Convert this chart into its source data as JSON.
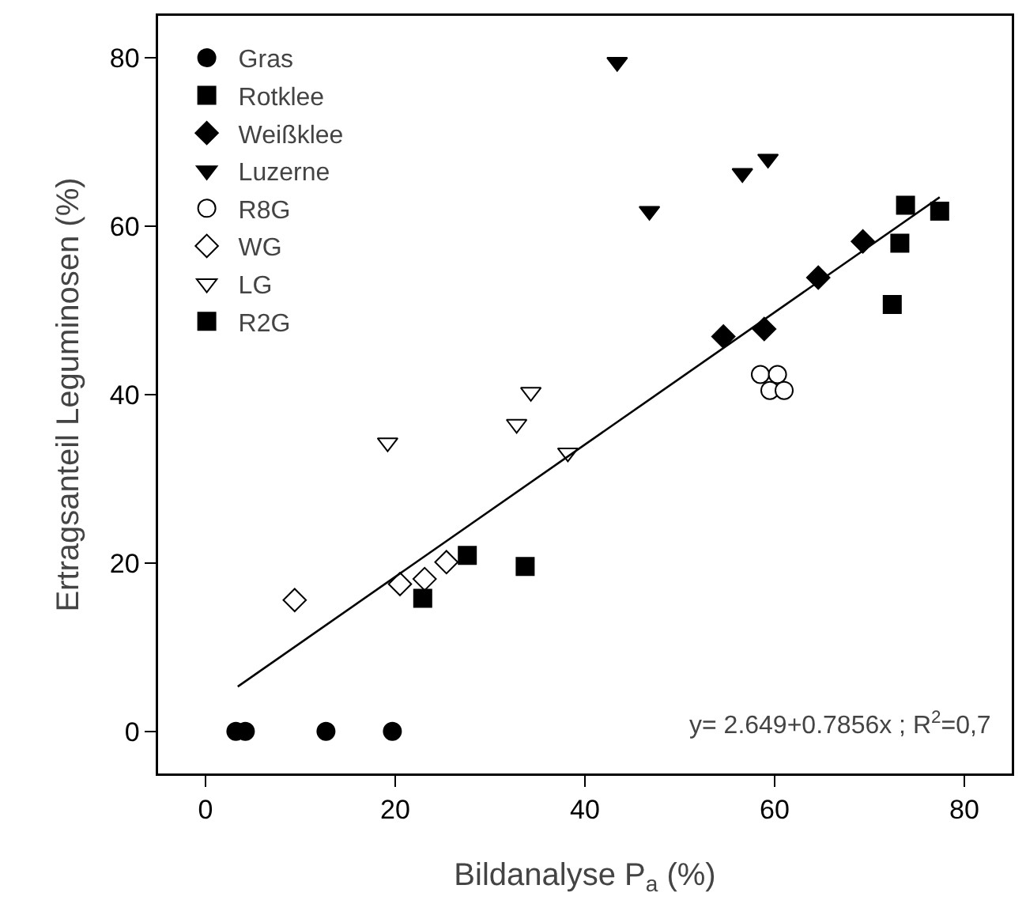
{
  "chart_data": {
    "type": "scatter",
    "xlabel": "Bildanalyse P$_{a}$ (%)",
    "ylabel": "Ertragsanteil Leguminosen (%)",
    "xlim": [
      -5,
      85
    ],
    "xticks": [
      0,
      20,
      40,
      60,
      80
    ],
    "ylim": [
      -5,
      85
    ],
    "yticks": [
      0,
      20,
      40,
      60,
      80
    ],
    "grid": false,
    "legend": "top left",
    "annotations": [
      "y= 2.649+0.7856x ; R$^{2}$=0,7"
    ],
    "series": [
      {
        "name": "Gras",
        "color": "#000000",
        "marker": "circle",
        "x": [
          3.2,
          4.2,
          12.7,
          19.7
        ],
        "values": [
          0,
          0,
          0,
          0
        ]
      },
      {
        "name": "Rotklee",
        "color": "#000000",
        "marker": "square",
        "x": [
          73.8,
          77.4,
          73.2,
          72.4
        ],
        "values": [
          62.5,
          61.8,
          58,
          50.7
        ]
      },
      {
        "name": "Weißklee",
        "color": "#000000",
        "marker": "diamond",
        "x": [
          54.6,
          58.9,
          64.6,
          69.3
        ],
        "values": [
          46.9,
          47.8,
          53.9,
          58.2
        ]
      },
      {
        "name": "Luzerne",
        "color": "#000000",
        "marker": "triangle",
        "x": [
          43.4,
          46.8,
          56.6,
          59.3
        ],
        "values": [
          79.5,
          61.8,
          66.3,
          68
        ]
      },
      {
        "name": "R8G",
        "color": "#ffffff",
        "marker": "circle",
        "x": [
          58.5,
          60.3,
          59.5,
          61
        ],
        "values": [
          42.4,
          42.4,
          40.5,
          40.5
        ]
      },
      {
        "name": "WG",
        "color": "#ffffff",
        "marker": "diamond",
        "x": [
          9.4,
          20.5,
          23.1,
          25.4
        ],
        "values": [
          15.6,
          17.5,
          18.1,
          20.1
        ]
      },
      {
        "name": "LG",
        "color": "#ffffff",
        "marker": "triangle",
        "x": [
          19.2,
          32.8,
          34.3,
          38.2
        ],
        "values": [
          34.3,
          36.5,
          40.3,
          33.1
        ]
      },
      {
        "name": "R2G",
        "color": "#000000",
        "marker": "square",
        "x": [
          22.9,
          27.6,
          33.7
        ],
        "values": [
          15.8,
          20.9,
          19.6
        ]
      },
      {
        "type": "line",
        "color": "#000000",
        "line_style": "solid",
        "marker": "none",
        "x": [
          3.4,
          77.4
        ],
        "values": [
          5.32,
          63.45
        ]
      }
    ]
  }
}
